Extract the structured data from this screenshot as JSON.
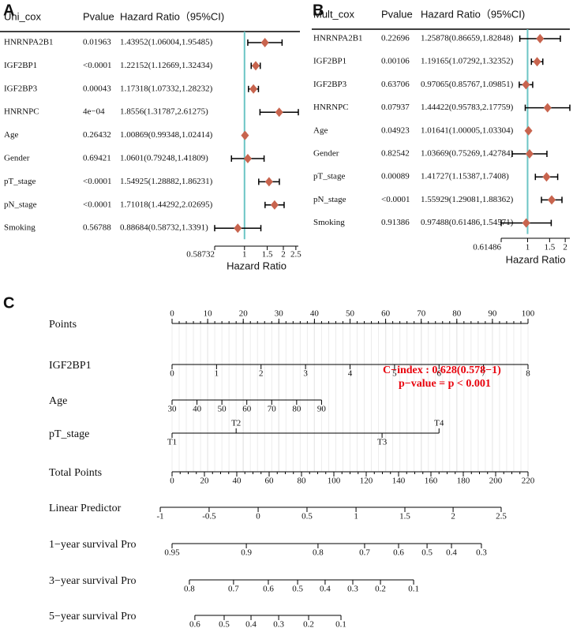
{
  "chart_data": [
    {
      "type": "forest",
      "panel": "A",
      "columns": [
        "Uni_cox",
        "Pvalue",
        "Hazard Ratio（95%CI)"
      ],
      "categories": [
        "HNRNPA2B1",
        "IGF2BP1",
        "IGF2BP3",
        "HNRNPC",
        "Age",
        "Gender",
        "pT_stage",
        "pN_stage",
        "Smoking"
      ],
      "pvalues": [
        "0.01963",
        "<0.0001",
        "0.00043",
        "4e−04",
        "0.26432",
        "0.69421",
        "<0.0001",
        "<0.0001",
        "0.56788"
      ],
      "values": [
        1.43952,
        1.22152,
        1.17318,
        1.8556,
        1.00869,
        1.0601,
        1.54925,
        1.71018,
        0.88684
      ],
      "lower": [
        1.06004,
        1.12669,
        1.07332,
        1.31787,
        0.99348,
        0.79248,
        1.28882,
        1.44292,
        0.58732
      ],
      "upper": [
        1.95485,
        1.32434,
        1.28232,
        2.61275,
        1.02414,
        1.41809,
        1.86231,
        2.02695,
        1.3391
      ],
      "value_labels": [
        "1.43952(1.06004,1.95485)",
        "1.22152(1.12669,1.32434)",
        "1.17318(1.07332,1.28232)",
        "1.8556(1.31787,2.61275)",
        "1.00869(0.99348,1.02414)",
        "1.0601(0.79248,1.41809)",
        "1.54925(1.28882,1.86231)",
        "1.71018(1.44292,2.02695)",
        "0.88684(0.58732,1.3391)"
      ],
      "xlim": [
        0.58732,
        2.61275
      ],
      "xticks": [
        0.58732,
        1,
        1.5,
        2,
        2.5
      ],
      "xscale": "log",
      "ref_line": 1,
      "xlabel": "Hazard Ratio",
      "color": "#c8644e",
      "ref_color": "#6cc5c5"
    },
    {
      "type": "forest",
      "panel": "B",
      "columns": [
        "Mult_cox",
        "Pvalue",
        "Hazard Ratio（95%CI)"
      ],
      "categories": [
        "HNRNPA2B1",
        "IGF2BP1",
        "IGF2BP3",
        "HNRNPC",
        "Age",
        "Gender",
        "pT_stage",
        "pN_stage",
        "Smoking"
      ],
      "pvalues": [
        "0.22696",
        "0.00106",
        "0.63706",
        "0.07937",
        "0.04923",
        "0.82542",
        "0.00089",
        "<0.0001",
        "0.91386"
      ],
      "values": [
        1.25878,
        1.19165,
        0.97065,
        1.44422,
        1.01641,
        1.03669,
        1.41727,
        1.55929,
        0.97488
      ],
      "lower": [
        0.86659,
        1.07292,
        0.85767,
        0.95783,
        1.00005,
        0.75269,
        1.15387,
        1.29081,
        0.61486
      ],
      "upper": [
        1.82848,
        1.32352,
        1.09851,
        2.17759,
        1.03304,
        1.42784,
        1.7408,
        1.88362,
        1.54571
      ],
      "value_labels": [
        "1.25878(0.86659,1.82848)",
        "1.19165(1.07292,1.32352)",
        "0.97065(0.85767,1.09851)",
        "1.44422(0.95783,2.17759)",
        "1.01641(1.00005,1.03304)",
        "1.03669(0.75269,1.42784)",
        "1.41727(1.15387,1.7408)",
        "1.55929(1.29081,1.88362)",
        "0.97488(0.61486,1.54571)"
      ],
      "xlim": [
        0.61486,
        2.17759
      ],
      "xticks": [
        0.61486,
        1,
        1.5,
        2
      ],
      "xscale": "log",
      "ref_line": 1,
      "xlabel": "Hazard Ratio",
      "color": "#c8644e",
      "ref_color": "#6cc5c5"
    },
    {
      "type": "nomogram",
      "panel": "C",
      "points_lim": [
        0,
        100
      ],
      "total_points_lim": [
        0,
        220
      ],
      "rows": [
        {
          "name": "Points",
          "ticks": [
            0,
            10,
            20,
            30,
            40,
            50,
            60,
            70,
            80,
            90,
            100
          ]
        },
        {
          "name": "IGF2BP1",
          "ticks": [
            0,
            1,
            2,
            3,
            4,
            5,
            6,
            7,
            8
          ],
          "points": [
            0,
            12.5,
            25,
            37.5,
            50,
            62.5,
            75,
            87.5,
            100
          ]
        },
        {
          "name": "Age",
          "ticks": [
            30,
            40,
            50,
            60,
            70,
            80,
            90
          ],
          "points": [
            0,
            7,
            14,
            21,
            28,
            35,
            42
          ]
        },
        {
          "name": "pT_stage",
          "ticks": [
            "T1",
            "T2",
            "T3",
            "T4"
          ],
          "points": [
            0,
            18,
            59,
            75
          ]
        },
        {
          "name": "Total Points",
          "ticks": [
            0,
            20,
            40,
            60,
            80,
            100,
            120,
            140,
            160,
            180,
            200,
            220
          ]
        },
        {
          "name": "Linear Predictor",
          "ticks": [
            -1,
            -0.5,
            0,
            0.5,
            1,
            1.5,
            2,
            2.5
          ],
          "total_points": [
            -7.3,
            22.9,
            53.2,
            83.4,
            113.7,
            143.9,
            173.7,
            203.4
          ]
        },
        {
          "name": "1−year survival Pro",
          "ticks": [
            0.95,
            0.9,
            0.8,
            0.7,
            0.6,
            0.5,
            0.4,
            0.3
          ],
          "total_points": [
            0,
            45.9,
            90.2,
            119,
            140,
            157.6,
            172.7,
            191.2
          ]
        },
        {
          "name": "3−year survival Pro",
          "ticks": [
            0.8,
            0.7,
            0.6,
            0.5,
            0.4,
            0.3,
            0.2,
            0.1
          ],
          "total_points": [
            10.7,
            38,
            59.5,
            77.6,
            94.6,
            111.7,
            128.8,
            149.3
          ]
        },
        {
          "name": "5−year survival Pro",
          "ticks": [
            0.6,
            0.5,
            0.4,
            0.3,
            0.2,
            0.1
          ],
          "total_points": [
            14.1,
            32.2,
            48.8,
            65.9,
            84.4,
            104.4
          ]
        }
      ],
      "annotations": [
        "C−index : 0.628(0.578−1)",
        "p−value = p < 0.001"
      ],
      "annotation_color": "#e8000b"
    }
  ]
}
